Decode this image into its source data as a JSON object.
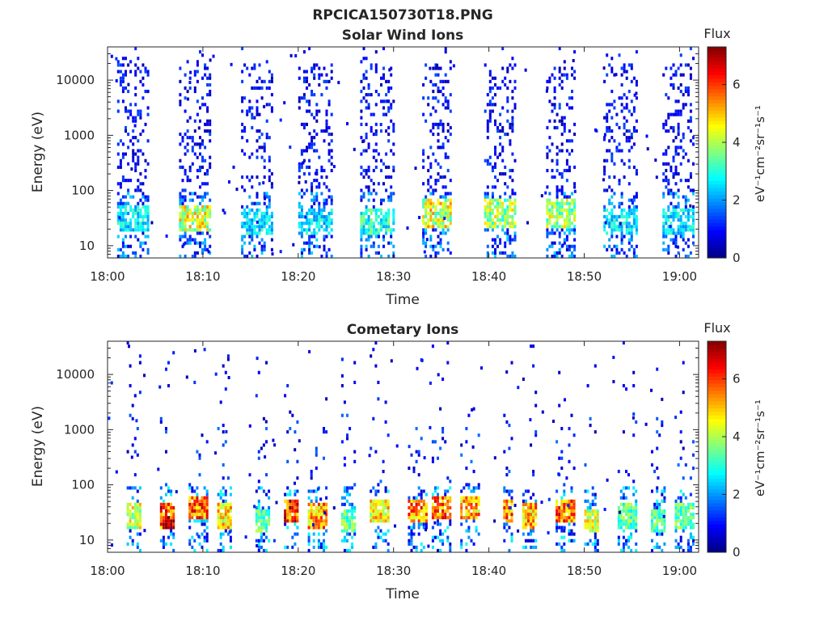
{
  "figure_title": "RPCICA150730T18.PNG",
  "chart_data": [
    {
      "type": "heatmap",
      "title": "Solar Wind Ions",
      "xlabel": "Time",
      "ylabel": "Energy (eV)",
      "x_range": [
        "18:00",
        "19:02"
      ],
      "x_ticks": [
        "18:00",
        "18:10",
        "18:20",
        "18:30",
        "18:40",
        "18:50",
        "19:00"
      ],
      "y_scale": "log",
      "y_range": [
        6,
        40000
      ],
      "y_ticks": [
        10,
        100,
        1000,
        10000
      ],
      "y_tick_labels": [
        "10",
        "100",
        "1000",
        "10000"
      ],
      "colorbar": {
        "title": "Flux",
        "label": "eV⁻¹cm⁻²sr⁻¹s⁻¹",
        "range": [
          0,
          7.3
        ],
        "ticks": [
          0,
          2,
          4,
          6
        ],
        "tick_labels": [
          "0",
          "2",
          "4",
          "6"
        ],
        "colormap": "jet"
      },
      "bursts": [
        {
          "start_min": 1.0,
          "end_min": 4.2,
          "low_peak_energy": 30,
          "low_peak_flux": 3.0
        },
        {
          "start_min": 7.5,
          "end_min": 10.8,
          "low_peak_energy": 30,
          "low_peak_flux": 5.0
        },
        {
          "start_min": 14.0,
          "end_min": 17.2,
          "low_peak_energy": 25,
          "low_peak_flux": 3.0
        },
        {
          "start_min": 20.0,
          "end_min": 23.5,
          "low_peak_energy": 25,
          "low_peak_flux": 3.0
        },
        {
          "start_min": 26.5,
          "end_min": 30.0,
          "low_peak_energy": 25,
          "low_peak_flux": 3.5
        },
        {
          "start_min": 33.0,
          "end_min": 36.0,
          "low_peak_energy": 35,
          "low_peak_flux": 5.0
        },
        {
          "start_min": 39.5,
          "end_min": 42.8,
          "low_peak_energy": 35,
          "low_peak_flux": 4.5
        },
        {
          "start_min": 46.0,
          "end_min": 49.0,
          "low_peak_energy": 35,
          "low_peak_flux": 4.5
        },
        {
          "start_min": 52.0,
          "end_min": 55.5,
          "low_peak_energy": 25,
          "low_peak_flux": 3.0
        },
        {
          "start_min": 58.2,
          "end_min": 61.5,
          "low_peak_energy": 25,
          "low_peak_flux": 3.0
        }
      ]
    },
    {
      "type": "heatmap",
      "title": "Cometary Ions",
      "xlabel": "Time",
      "ylabel": "Energy (eV)",
      "x_range": [
        "18:00",
        "19:02"
      ],
      "x_ticks": [
        "18:00",
        "18:10",
        "18:20",
        "18:30",
        "18:40",
        "18:50",
        "19:00"
      ],
      "y_scale": "log",
      "y_range": [
        6,
        40000
      ],
      "y_ticks": [
        10,
        100,
        1000,
        10000
      ],
      "y_tick_labels": [
        "10",
        "100",
        "1000",
        "10000"
      ],
      "colorbar": {
        "title": "Flux",
        "label": "eV⁻¹cm⁻²sr⁻¹s⁻¹",
        "range": [
          0,
          7.3
        ],
        "ticks": [
          0,
          2,
          4,
          6
        ],
        "tick_labels": [
          "0",
          "2",
          "4",
          "6"
        ],
        "colormap": "jet"
      },
      "bursts": [
        {
          "start_min": 2.0,
          "end_min": 3.5,
          "low_peak_energy": 25,
          "low_peak_flux": 5.0
        },
        {
          "start_min": 5.5,
          "end_min": 7.0,
          "low_peak_energy": 25,
          "low_peak_flux": 7.0
        },
        {
          "start_min": 8.5,
          "end_min": 10.5,
          "low_peak_energy": 35,
          "low_peak_flux": 6.5
        },
        {
          "start_min": 11.5,
          "end_min": 13.0,
          "low_peak_energy": 25,
          "low_peak_flux": 5.5
        },
        {
          "start_min": 15.5,
          "end_min": 17.0,
          "low_peak_energy": 20,
          "low_peak_flux": 4.0
        },
        {
          "start_min": 18.5,
          "end_min": 20.0,
          "low_peak_energy": 30,
          "low_peak_flux": 7.0
        },
        {
          "start_min": 21.0,
          "end_min": 23.0,
          "low_peak_energy": 25,
          "low_peak_flux": 6.0
        },
        {
          "start_min": 24.5,
          "end_min": 26.0,
          "low_peak_energy": 20,
          "low_peak_flux": 4.0
        },
        {
          "start_min": 27.5,
          "end_min": 29.5,
          "low_peak_energy": 30,
          "low_peak_flux": 5.5
        },
        {
          "start_min": 31.5,
          "end_min": 33.5,
          "low_peak_energy": 30,
          "low_peak_flux": 6.5
        },
        {
          "start_min": 34.0,
          "end_min": 36.0,
          "low_peak_energy": 35,
          "low_peak_flux": 6.5
        },
        {
          "start_min": 37.0,
          "end_min": 39.0,
          "low_peak_energy": 35,
          "low_peak_flux": 6.0
        },
        {
          "start_min": 41.5,
          "end_min": 42.5,
          "low_peak_energy": 30,
          "low_peak_flux": 6.5
        },
        {
          "start_min": 43.5,
          "end_min": 45.0,
          "low_peak_energy": 25,
          "low_peak_flux": 6.0
        },
        {
          "start_min": 47.0,
          "end_min": 49.0,
          "low_peak_energy": 30,
          "low_peak_flux": 6.5
        },
        {
          "start_min": 50.0,
          "end_min": 51.5,
          "low_peak_energy": 20,
          "low_peak_flux": 5.0
        },
        {
          "start_min": 53.5,
          "end_min": 55.5,
          "low_peak_energy": 25,
          "low_peak_flux": 4.0
        },
        {
          "start_min": 57.0,
          "end_min": 58.5,
          "low_peak_energy": 20,
          "low_peak_flux": 4.0
        },
        {
          "start_min": 59.5,
          "end_min": 61.5,
          "low_peak_energy": 25,
          "low_peak_flux": 4.0
        }
      ]
    }
  ]
}
